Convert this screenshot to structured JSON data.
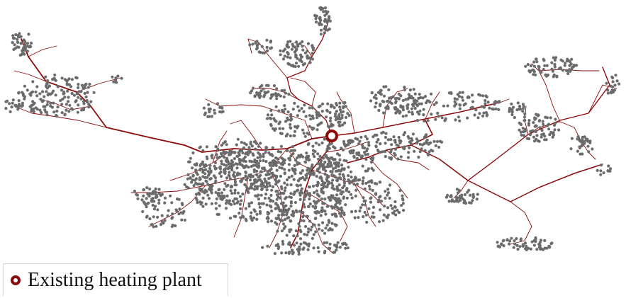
{
  "legend": {
    "plant_label": "Existing heating plant"
  },
  "colors": {
    "pipe": "#8b0a0a",
    "building": "#6b6b6b",
    "plant": "#8b0a0a",
    "legend_border": "#d4d4d4"
  },
  "icons": {
    "plant_marker": "ring-dot-icon"
  }
}
